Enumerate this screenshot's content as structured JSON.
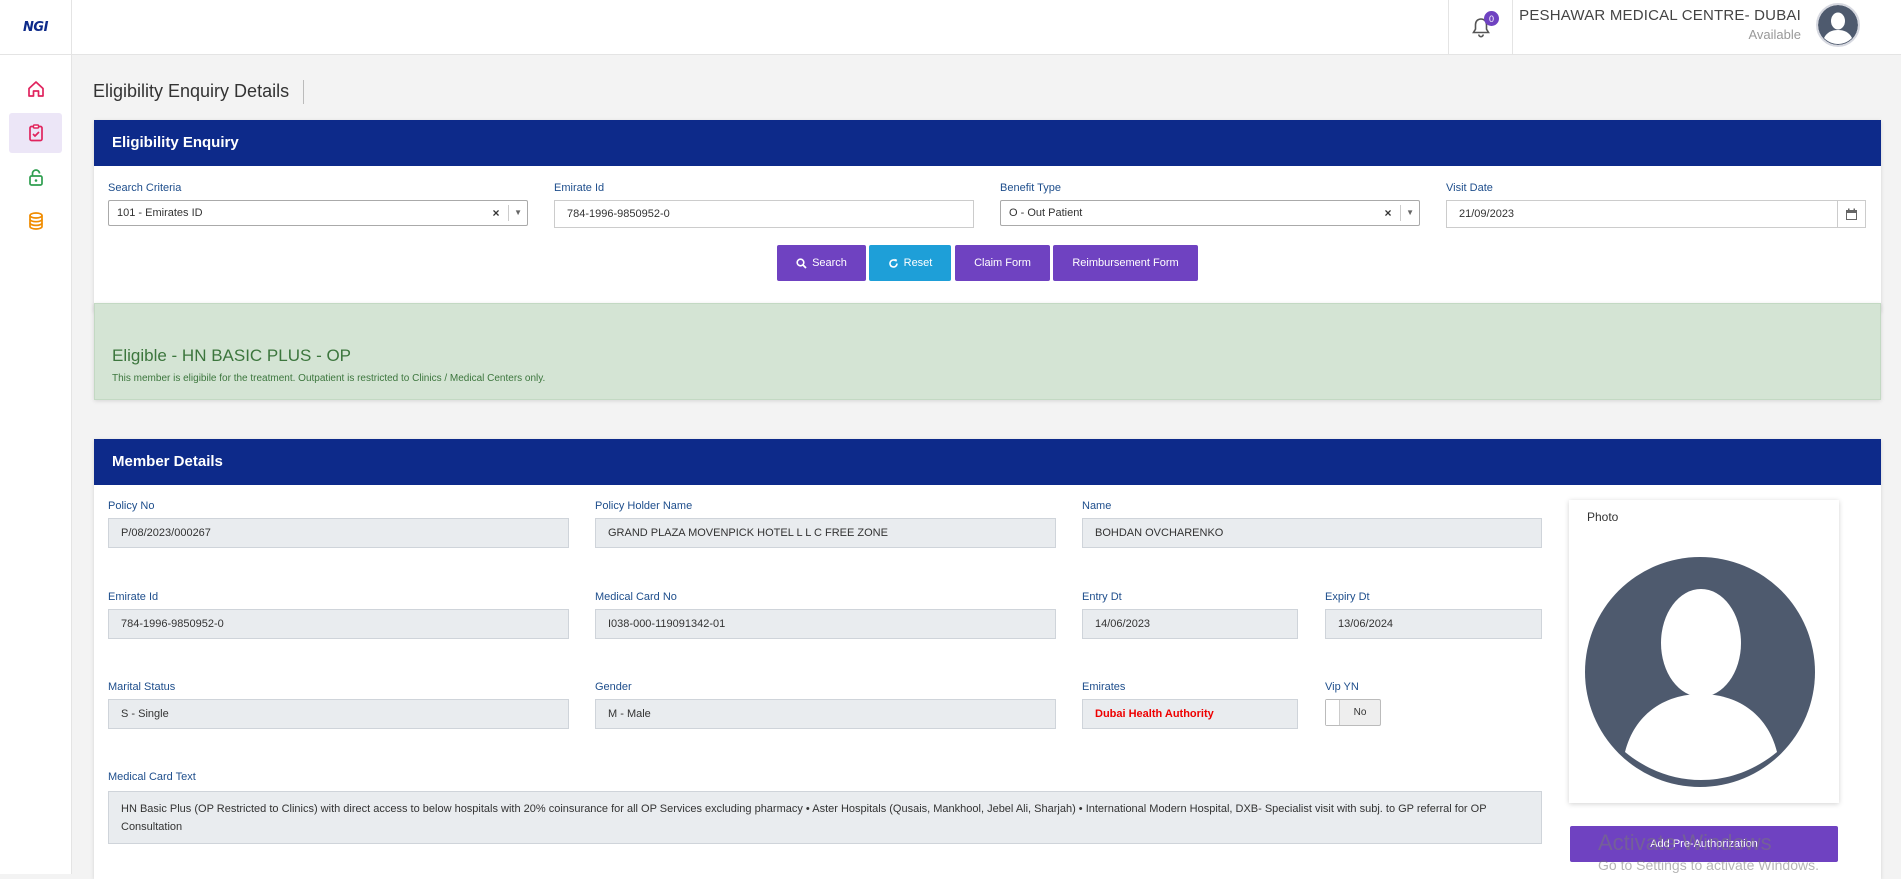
{
  "app": {
    "logo_text": "NGI",
    "notification_count": "0",
    "org_name": "PESHAWAR MEDICAL CENTRE- DUBAI",
    "user_status": "Available"
  },
  "page": {
    "title": "Eligibility Enquiry Details"
  },
  "enquiry": {
    "header": "Eligibility Enquiry",
    "search_criteria": {
      "label": "Search Criteria",
      "value": "101 - Emirates ID"
    },
    "emirate_id": {
      "label": "Emirate Id",
      "value": "784-1996-9850952-0"
    },
    "benefit_type": {
      "label": "Benefit Type",
      "value": "O - Out Patient"
    },
    "visit_date": {
      "label": "Visit Date",
      "value": "21/09/2023"
    },
    "buttons": {
      "search": "Search",
      "reset": "Reset",
      "claim_form": "Claim Form",
      "reimbursement_form": "Reimbursement Form"
    }
  },
  "eligibility": {
    "title": "Eligible - HN BASIC PLUS - OP",
    "message": "This member is eligibile for the treatment. Outpatient is restricted to Clinics / Medical Centers only."
  },
  "member": {
    "header": "Member Details",
    "policy_no": {
      "label": "Policy No",
      "value": "P/08/2023/000267"
    },
    "policy_holder": {
      "label": "Policy Holder Name",
      "value": "GRAND PLAZA MOVENPICK HOTEL L L C FREE ZONE"
    },
    "name": {
      "label": "Name",
      "value": "BOHDAN OVCHARENKO"
    },
    "emirate_id": {
      "label": "Emirate Id",
      "value": "784-1996-9850952-0"
    },
    "medical_card_no": {
      "label": "Medical Card No",
      "value": "I038-000-119091342-01"
    },
    "entry_dt": {
      "label": "Entry Dt",
      "value": "14/06/2023"
    },
    "expiry_dt": {
      "label": "Expiry Dt",
      "value": "13/06/2024"
    },
    "marital_status": {
      "label": "Marital Status",
      "value": "S - Single"
    },
    "gender": {
      "label": "Gender",
      "value": "M - Male"
    },
    "emirates": {
      "label": "Emirates",
      "value": "Dubai Health Authority"
    },
    "vip_yn": {
      "label": "Vip YN",
      "value": "No"
    },
    "medical_card_text": {
      "label": "Medical Card Text",
      "value": "HN Basic Plus (OP Restricted to Clinics) with direct  access to below hospitals with 20% coinsurance for all OP Services excluding pharmacy • Aster Hospitals (Qusais, Mankhool, Jebel Ali,  Sharjah) • International Modern Hospital, DXB- Specialist visit with subj. to GP referral for OP Consultation"
    },
    "photo_label": "Photo",
    "add_pre_auth": "Add Pre-Authorization"
  },
  "watermark": {
    "line1": "Activate Windows",
    "line2": "Go to Settings to activate Windows."
  },
  "colors": {
    "brand_navy": "#0d2a8a",
    "accent_purple": "#6f42c1",
    "accent_blue": "#1e9fd8",
    "success_bg": "#d4e4d4"
  }
}
